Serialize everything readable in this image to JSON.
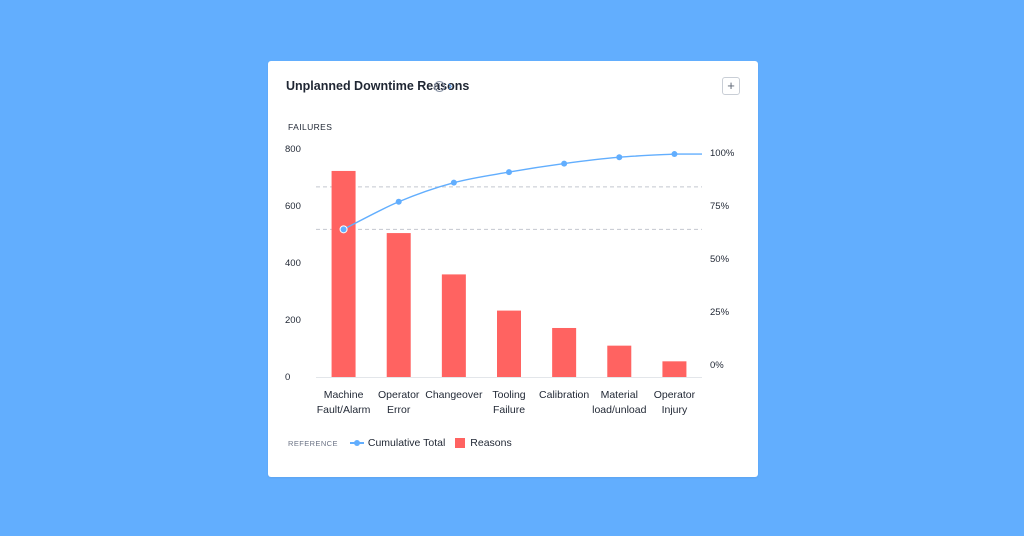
{
  "card": {
    "title": "Unplanned Downtime Reasons",
    "info_glyph": "i",
    "chevron_glyph": "›",
    "add_glyph": "+"
  },
  "legend": {
    "title": "REFERENCE",
    "items": [
      "Cumulative Total",
      "Reasons"
    ]
  },
  "colors": {
    "page_background": "#62aefe",
    "bars": "#ff6361",
    "line": "#62aefe",
    "card": "#ffffff"
  },
  "icons": [
    "info-icon",
    "chevron-right-icon",
    "plus-icon"
  ],
  "chart_data": {
    "type": "bar",
    "title": "Unplanned Downtime Reasons",
    "ylabel": "FAILURES",
    "xlabel": "",
    "ylim": [
      0,
      800
    ],
    "y_ticks": [
      "0",
      "200",
      "400",
      "600",
      "800"
    ],
    "y2_ticks": [
      "0%",
      "25%",
      "50%",
      "75%",
      "100%"
    ],
    "y2lim": [
      0,
      100
    ],
    "categories": [
      [
        "Machine",
        "Fault/Alarm"
      ],
      [
        "Operator",
        "Error"
      ],
      [
        "Changeover"
      ],
      [
        "Tooling",
        "Failure"
      ],
      [
        "Calibration"
      ],
      [
        "Material",
        "load/unload"
      ],
      [
        "Operator",
        "Injury"
      ]
    ],
    "series": [
      {
        "name": "Reasons",
        "type": "bar",
        "axis": "left",
        "values": [
          723,
          505,
          360,
          233,
          172,
          110,
          55
        ]
      },
      {
        "name": "Cumulative Total",
        "type": "line",
        "axis": "right",
        "values": [
          64,
          77,
          86,
          91,
          95,
          98,
          99.5
        ]
      }
    ],
    "reference_lines_pct": [
      64,
      84
    ],
    "legend_position": "bottom-left",
    "grid": false
  }
}
